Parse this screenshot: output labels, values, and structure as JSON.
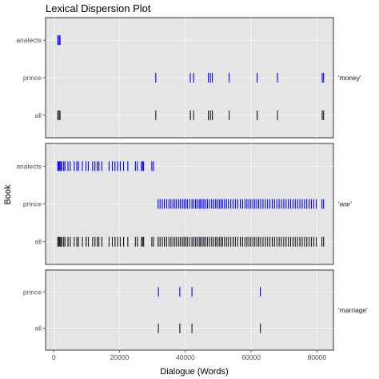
{
  "chart_data": {
    "type": "scatter",
    "title": "Lexical Dispersion Plot",
    "xlabel": "Dialogue (Words)",
    "ylabel": "Book",
    "xlim": [
      -2500,
      85000
    ],
    "x_ticks": [
      0,
      20000,
      40000,
      60000,
      80000
    ],
    "x_tick_labels": [
      "0",
      "20000",
      "40000",
      "60000",
      "80000"
    ],
    "grid": true,
    "panel_background": "#e5e5e5",
    "colors": {
      "book_marks": "#0000ff",
      "all_marks": "#1a1a1a",
      "all_overlay": "#7a9ad0"
    },
    "panels": [
      {
        "label": "'money'",
        "rows": [
          {
            "book": "analects",
            "x": [
              1200,
              1600,
              1900
            ]
          },
          {
            "book": "prince",
            "x": [
              31000,
              41500,
              42500,
              47000,
              47600,
              48200,
              53300,
              61800,
              68000,
              81600,
              82000
            ]
          },
          {
            "book": "all",
            "x": [
              1200,
              1600,
              1900,
              31000,
              41500,
              42500,
              47000,
              47600,
              48200,
              53300,
              61800,
              68000,
              81600,
              82000
            ]
          }
        ]
      },
      {
        "label": "'war'",
        "rows": [
          {
            "book": "analects",
            "x": [
              1200,
              1500,
              1800,
              2100,
              2400,
              3000,
              3400,
              4300,
              5000,
              6200,
              7000,
              7500,
              8700,
              9800,
              10500,
              11800,
              12500,
              13200,
              13700,
              14600,
              16800,
              17800,
              18600,
              19400,
              20200,
              21200,
              22500,
              24800,
              25400,
              26600,
              27000,
              27300,
              29800,
              30300
            ]
          },
          {
            "book": "prince",
            "x": [
              31700,
              32300,
              33000,
              33600,
              34300,
              35000,
              35600,
              36200,
              36800,
              37300,
              38000,
              38500,
              39100,
              39600,
              40100,
              40600,
              41300,
              42000,
              42500,
              43100,
              43600,
              44200,
              44600,
              45100,
              45600,
              46100,
              46700,
              47300,
              48000,
              48600,
              49200,
              49700,
              50300,
              50800,
              51300,
              51900,
              52500,
              53100,
              53800,
              54500,
              55200,
              55900,
              56700,
              57400,
              58100,
              58700,
              59300,
              59900,
              60500,
              61100,
              61700,
              62300,
              62900,
              63600,
              64300,
              65000,
              65700,
              66400,
              67100,
              67800,
              68500,
              69200,
              69900,
              70600,
              71300,
              72000,
              72700,
              73400,
              74100,
              74800,
              75500,
              76200,
              76900,
              77600,
              78300,
              79000,
              79800,
              81500,
              82000
            ]
          },
          {
            "book": "all",
            "x": [
              1200,
              1500,
              1800,
              2100,
              2400,
              3000,
              3400,
              4300,
              5000,
              6200,
              7000,
              7500,
              8700,
              9800,
              10500,
              11800,
              12500,
              13200,
              13700,
              14600,
              16800,
              17800,
              18600,
              19400,
              20200,
              21200,
              22500,
              24800,
              25400,
              26600,
              27000,
              27300,
              29800,
              30300,
              31700,
              32300,
              33000,
              33600,
              34300,
              35000,
              35600,
              36200,
              36800,
              37300,
              38000,
              38500,
              39100,
              39600,
              40100,
              40600,
              41300,
              42000,
              42500,
              43100,
              43600,
              44200,
              44600,
              45100,
              45600,
              46100,
              46700,
              47300,
              48000,
              48600,
              49200,
              49700,
              50300,
              50800,
              51300,
              51900,
              52500,
              53100,
              53800,
              54500,
              55200,
              55900,
              56700,
              57400,
              58100,
              58700,
              59300,
              59900,
              60500,
              61100,
              61700,
              62300,
              62900,
              63600,
              64300,
              65000,
              65700,
              66400,
              67100,
              67800,
              68500,
              69200,
              69900,
              70600,
              71300,
              72000,
              72700,
              73400,
              74100,
              74800,
              75500,
              76200,
              76900,
              77600,
              78300,
              79000,
              79800,
              81500,
              82000
            ]
          }
        ]
      },
      {
        "label": "'marriage'",
        "rows": [
          {
            "book": "prince",
            "x": [
              31800,
              38300,
              42000,
              62800
            ]
          },
          {
            "book": "all",
            "x": [
              31800,
              38300,
              42000,
              62800
            ]
          }
        ]
      }
    ]
  }
}
